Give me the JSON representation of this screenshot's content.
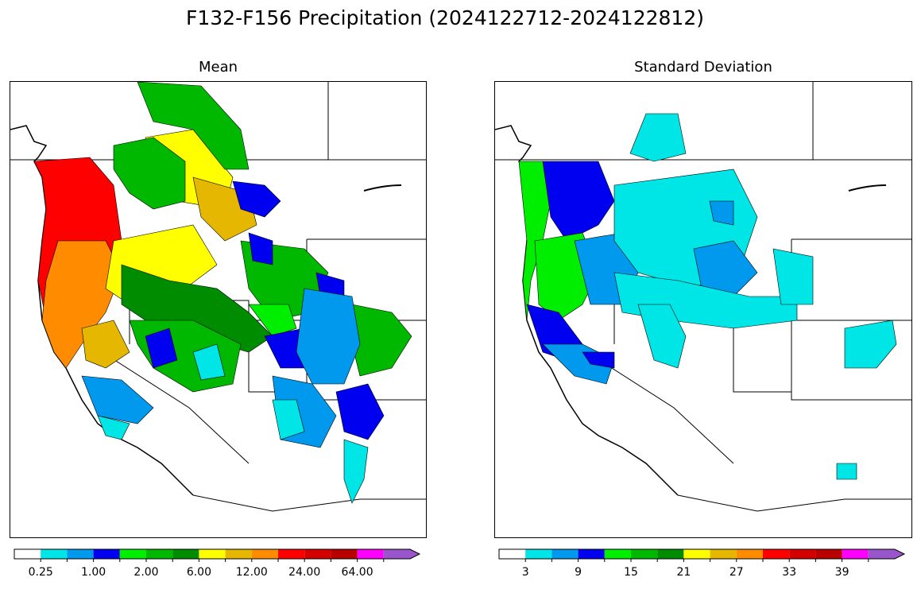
{
  "title": "F132-F156 Precipitation (2024122712-2024122812)",
  "panels": [
    {
      "subtitle": "Mean",
      "colorbar": {
        "colors": [
          "#ffffff",
          "#00e5e5",
          "#0099ee",
          "#0000f0",
          "#00ee00",
          "#00b800",
          "#008c00",
          "#ffff00",
          "#e5b700",
          "#ff8c00",
          "#ff0000",
          "#d40000",
          "#b80000",
          "#ff00ff",
          "#9955cc"
        ],
        "tick_labels": [
          "0.25",
          "1.00",
          "2.00",
          "6.00",
          "12.00",
          "24.00",
          "64.00"
        ],
        "tick_slots": [
          1,
          3,
          5,
          7,
          9,
          11,
          13
        ]
      }
    },
    {
      "subtitle": "Standard Deviation",
      "colorbar": {
        "colors": [
          "#ffffff",
          "#00e5e5",
          "#0099ee",
          "#0000f0",
          "#00ee00",
          "#00b800",
          "#008c00",
          "#ffff00",
          "#e5b700",
          "#ff8c00",
          "#ff0000",
          "#d40000",
          "#b80000",
          "#ff00ff",
          "#9955cc"
        ],
        "tick_labels": [
          "3",
          "9",
          "15",
          "21",
          "27",
          "33",
          "39"
        ],
        "tick_slots": [
          1,
          3,
          5,
          7,
          9,
          11,
          13
        ]
      }
    }
  ],
  "map_regions": {
    "mean": [
      {
        "color": "#ff0000"
      },
      {
        "color": "#ff8c00"
      },
      {
        "color": "#e5b700"
      },
      {
        "color": "#ffff00"
      },
      {
        "color": "#00b800"
      },
      {
        "color": "#008c00"
      },
      {
        "color": "#00ee00"
      },
      {
        "color": "#0000f0"
      },
      {
        "color": "#0099ee"
      },
      {
        "color": "#00e5e5"
      }
    ],
    "stddev": [
      {
        "color": "#00ee00"
      },
      {
        "color": "#0000f0"
      },
      {
        "color": "#0099ee"
      },
      {
        "color": "#00e5e5"
      }
    ]
  }
}
